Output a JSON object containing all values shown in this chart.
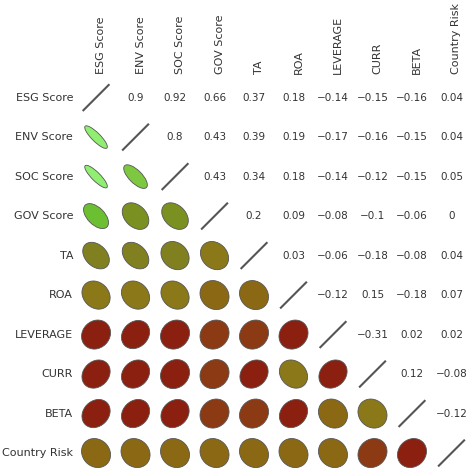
{
  "labels": [
    "ESG Score",
    "ENV Score",
    "SOC Score",
    "GOV Score",
    "TA",
    "ROA",
    "LEVERAGE",
    "CURR",
    "BETA",
    "Country Risk"
  ],
  "corr_matrix": [
    [
      1.0,
      0.9,
      0.92,
      0.66,
      0.37,
      0.18,
      -0.14,
      -0.15,
      -0.16,
      0.04
    ],
    [
      0.9,
      1.0,
      0.8,
      0.43,
      0.39,
      0.19,
      -0.17,
      -0.16,
      -0.15,
      0.04
    ],
    [
      0.92,
      0.8,
      1.0,
      0.43,
      0.34,
      0.18,
      -0.14,
      -0.12,
      -0.15,
      0.05
    ],
    [
      0.66,
      0.43,
      0.43,
      1.0,
      0.2,
      0.09,
      -0.08,
      -0.1,
      -0.06,
      0.0
    ],
    [
      0.37,
      0.39,
      0.34,
      0.2,
      1.0,
      0.03,
      -0.06,
      -0.18,
      -0.08,
      0.04
    ],
    [
      0.18,
      0.19,
      0.18,
      0.09,
      0.03,
      1.0,
      -0.12,
      0.15,
      -0.18,
      0.07
    ],
    [
      -0.14,
      -0.17,
      -0.14,
      -0.08,
      -0.06,
      -0.12,
      1.0,
      -0.31,
      0.02,
      0.02
    ],
    [
      -0.15,
      -0.16,
      -0.12,
      -0.1,
      -0.18,
      0.15,
      -0.31,
      1.0,
      0.12,
      -0.08
    ],
    [
      -0.16,
      -0.15,
      -0.15,
      -0.06,
      -0.08,
      -0.18,
      0.02,
      0.12,
      1.0,
      -0.12
    ],
    [
      0.04,
      0.04,
      0.05,
      0.0,
      0.04,
      0.07,
      0.02,
      -0.08,
      -0.12,
      1.0
    ]
  ],
  "upper_text": [
    [
      null,
      "0.9",
      "0.92",
      "0.66",
      "0.37",
      "0.18",
      "−0.14",
      "−0.15",
      "−0.16",
      "0.04"
    ],
    [
      null,
      null,
      "0.8",
      "0.43",
      "0.39",
      "0.19",
      "−0.17",
      "−0.16",
      "−0.15",
      "0.04"
    ],
    [
      null,
      null,
      null,
      "0.43",
      "0.34",
      "0.18",
      "−0.14",
      "−0.12",
      "−0.15",
      "0.05"
    ],
    [
      null,
      null,
      null,
      null,
      "0.2",
      "0.09",
      "−0.08",
      "−0.1",
      "−0.06",
      "0"
    ],
    [
      null,
      null,
      null,
      null,
      null,
      "0.03",
      "−0.06",
      "−0.18",
      "−0.08",
      "0.04"
    ],
    [
      null,
      null,
      null,
      null,
      null,
      null,
      "−0.12",
      "0.15",
      "−0.18",
      "0.07"
    ],
    [
      null,
      null,
      null,
      null,
      null,
      null,
      null,
      "−0.31",
      "0.02",
      "0.02"
    ],
    [
      null,
      null,
      null,
      null,
      null,
      null,
      null,
      null,
      "0.12",
      "−0.08"
    ],
    [
      null,
      null,
      null,
      null,
      null,
      null,
      null,
      null,
      null,
      "−0.12"
    ],
    [
      null,
      null,
      null,
      null,
      null,
      null,
      null,
      null,
      null,
      null
    ]
  ],
  "color_breakpoints": {
    "light_green": "#90EE70",
    "medium_green": "#6BBF3A",
    "olive_green": "#6B8B23",
    "dark_olive": "#7A7A10",
    "brown_olive": "#8B6914",
    "dark_brown": "#8B3A14",
    "dark_red": "#8B2010"
  },
  "text_color": "#333333",
  "font_size_labels": 8,
  "font_size_corr": 7.5
}
